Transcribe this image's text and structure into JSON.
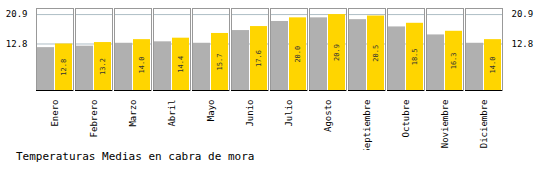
{
  "chart_data": {
    "type": "bar",
    "title": "Temperaturas Medias en cabra de mora",
    "categories": [
      "Enero",
      "Febrero",
      "Marzo",
      "Abril",
      "Mayo",
      "Junio",
      "Julio",
      "Agosto",
      "Septiembre",
      "Octubre",
      "Noviembre",
      "Diciembre"
    ],
    "series": [
      {
        "color": "#B0B0B0",
        "values": [
          11.8,
          12.2,
          13.0,
          13.4,
          13.0,
          16.5,
          19.0,
          20.0,
          19.5,
          17.5,
          15.3,
          13.0
        ]
      },
      {
        "color": "#FFD500",
        "values": [
          12.8,
          13.2,
          14.0,
          14.4,
          15.7,
          17.6,
          20.0,
          20.9,
          20.5,
          18.5,
          16.3,
          14.0
        ],
        "data_labels": true,
        "value_labels": [
          "12.8",
          "13.2",
          "14.0",
          "14.4",
          "15.7",
          "17.6",
          "20.0",
          "20.9",
          "20.5",
          "18.5",
          "16.3",
          "14.0"
        ]
      }
    ],
    "ylim": [
      0,
      22.572
    ],
    "yticks": [
      12.8,
      20.9
    ],
    "y2lim": [
      0,
      22.572
    ],
    "y2ticks": [
      12.8,
      20.9
    ],
    "grid": true
  }
}
